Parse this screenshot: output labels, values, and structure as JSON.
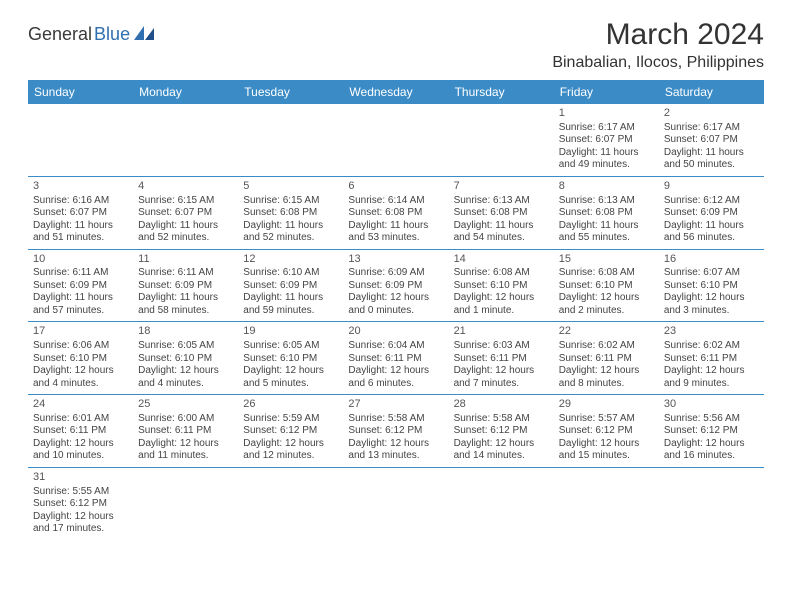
{
  "logo": {
    "part1": "General",
    "part2": "Blue"
  },
  "header": {
    "title": "March 2024",
    "location": "Binabalian, Ilocos, Philippines"
  },
  "colors": {
    "header_bar": "#3b8bc6",
    "header_text": "#ffffff",
    "rule": "#3b8bc6",
    "body_text": "#444444",
    "logo_blue": "#2f6fb0",
    "logo_dark": "#3a3a3a",
    "background": "#ffffff"
  },
  "weekdays": [
    "Sunday",
    "Monday",
    "Tuesday",
    "Wednesday",
    "Thursday",
    "Friday",
    "Saturday"
  ],
  "weeks": [
    [
      null,
      null,
      null,
      null,
      null,
      {
        "n": "1",
        "sr": "Sunrise: 6:17 AM",
        "ss": "Sunset: 6:07 PM",
        "d1": "Daylight: 11 hours",
        "d2": "and 49 minutes."
      },
      {
        "n": "2",
        "sr": "Sunrise: 6:17 AM",
        "ss": "Sunset: 6:07 PM",
        "d1": "Daylight: 11 hours",
        "d2": "and 50 minutes."
      }
    ],
    [
      {
        "n": "3",
        "sr": "Sunrise: 6:16 AM",
        "ss": "Sunset: 6:07 PM",
        "d1": "Daylight: 11 hours",
        "d2": "and 51 minutes."
      },
      {
        "n": "4",
        "sr": "Sunrise: 6:15 AM",
        "ss": "Sunset: 6:07 PM",
        "d1": "Daylight: 11 hours",
        "d2": "and 52 minutes."
      },
      {
        "n": "5",
        "sr": "Sunrise: 6:15 AM",
        "ss": "Sunset: 6:08 PM",
        "d1": "Daylight: 11 hours",
        "d2": "and 52 minutes."
      },
      {
        "n": "6",
        "sr": "Sunrise: 6:14 AM",
        "ss": "Sunset: 6:08 PM",
        "d1": "Daylight: 11 hours",
        "d2": "and 53 minutes."
      },
      {
        "n": "7",
        "sr": "Sunrise: 6:13 AM",
        "ss": "Sunset: 6:08 PM",
        "d1": "Daylight: 11 hours",
        "d2": "and 54 minutes."
      },
      {
        "n": "8",
        "sr": "Sunrise: 6:13 AM",
        "ss": "Sunset: 6:08 PM",
        "d1": "Daylight: 11 hours",
        "d2": "and 55 minutes."
      },
      {
        "n": "9",
        "sr": "Sunrise: 6:12 AM",
        "ss": "Sunset: 6:09 PM",
        "d1": "Daylight: 11 hours",
        "d2": "and 56 minutes."
      }
    ],
    [
      {
        "n": "10",
        "sr": "Sunrise: 6:11 AM",
        "ss": "Sunset: 6:09 PM",
        "d1": "Daylight: 11 hours",
        "d2": "and 57 minutes."
      },
      {
        "n": "11",
        "sr": "Sunrise: 6:11 AM",
        "ss": "Sunset: 6:09 PM",
        "d1": "Daylight: 11 hours",
        "d2": "and 58 minutes."
      },
      {
        "n": "12",
        "sr": "Sunrise: 6:10 AM",
        "ss": "Sunset: 6:09 PM",
        "d1": "Daylight: 11 hours",
        "d2": "and 59 minutes."
      },
      {
        "n": "13",
        "sr": "Sunrise: 6:09 AM",
        "ss": "Sunset: 6:09 PM",
        "d1": "Daylight: 12 hours",
        "d2": "and 0 minutes."
      },
      {
        "n": "14",
        "sr": "Sunrise: 6:08 AM",
        "ss": "Sunset: 6:10 PM",
        "d1": "Daylight: 12 hours",
        "d2": "and 1 minute."
      },
      {
        "n": "15",
        "sr": "Sunrise: 6:08 AM",
        "ss": "Sunset: 6:10 PM",
        "d1": "Daylight: 12 hours",
        "d2": "and 2 minutes."
      },
      {
        "n": "16",
        "sr": "Sunrise: 6:07 AM",
        "ss": "Sunset: 6:10 PM",
        "d1": "Daylight: 12 hours",
        "d2": "and 3 minutes."
      }
    ],
    [
      {
        "n": "17",
        "sr": "Sunrise: 6:06 AM",
        "ss": "Sunset: 6:10 PM",
        "d1": "Daylight: 12 hours",
        "d2": "and 4 minutes."
      },
      {
        "n": "18",
        "sr": "Sunrise: 6:05 AM",
        "ss": "Sunset: 6:10 PM",
        "d1": "Daylight: 12 hours",
        "d2": "and 4 minutes."
      },
      {
        "n": "19",
        "sr": "Sunrise: 6:05 AM",
        "ss": "Sunset: 6:10 PM",
        "d1": "Daylight: 12 hours",
        "d2": "and 5 minutes."
      },
      {
        "n": "20",
        "sr": "Sunrise: 6:04 AM",
        "ss": "Sunset: 6:11 PM",
        "d1": "Daylight: 12 hours",
        "d2": "and 6 minutes."
      },
      {
        "n": "21",
        "sr": "Sunrise: 6:03 AM",
        "ss": "Sunset: 6:11 PM",
        "d1": "Daylight: 12 hours",
        "d2": "and 7 minutes."
      },
      {
        "n": "22",
        "sr": "Sunrise: 6:02 AM",
        "ss": "Sunset: 6:11 PM",
        "d1": "Daylight: 12 hours",
        "d2": "and 8 minutes."
      },
      {
        "n": "23",
        "sr": "Sunrise: 6:02 AM",
        "ss": "Sunset: 6:11 PM",
        "d1": "Daylight: 12 hours",
        "d2": "and 9 minutes."
      }
    ],
    [
      {
        "n": "24",
        "sr": "Sunrise: 6:01 AM",
        "ss": "Sunset: 6:11 PM",
        "d1": "Daylight: 12 hours",
        "d2": "and 10 minutes."
      },
      {
        "n": "25",
        "sr": "Sunrise: 6:00 AM",
        "ss": "Sunset: 6:11 PM",
        "d1": "Daylight: 12 hours",
        "d2": "and 11 minutes."
      },
      {
        "n": "26",
        "sr": "Sunrise: 5:59 AM",
        "ss": "Sunset: 6:12 PM",
        "d1": "Daylight: 12 hours",
        "d2": "and 12 minutes."
      },
      {
        "n": "27",
        "sr": "Sunrise: 5:58 AM",
        "ss": "Sunset: 6:12 PM",
        "d1": "Daylight: 12 hours",
        "d2": "and 13 minutes."
      },
      {
        "n": "28",
        "sr": "Sunrise: 5:58 AM",
        "ss": "Sunset: 6:12 PM",
        "d1": "Daylight: 12 hours",
        "d2": "and 14 minutes."
      },
      {
        "n": "29",
        "sr": "Sunrise: 5:57 AM",
        "ss": "Sunset: 6:12 PM",
        "d1": "Daylight: 12 hours",
        "d2": "and 15 minutes."
      },
      {
        "n": "30",
        "sr": "Sunrise: 5:56 AM",
        "ss": "Sunset: 6:12 PM",
        "d1": "Daylight: 12 hours",
        "d2": "and 16 minutes."
      }
    ],
    [
      {
        "n": "31",
        "sr": "Sunrise: 5:55 AM",
        "ss": "Sunset: 6:12 PM",
        "d1": "Daylight: 12 hours",
        "d2": "and 17 minutes."
      },
      null,
      null,
      null,
      null,
      null,
      null
    ]
  ]
}
